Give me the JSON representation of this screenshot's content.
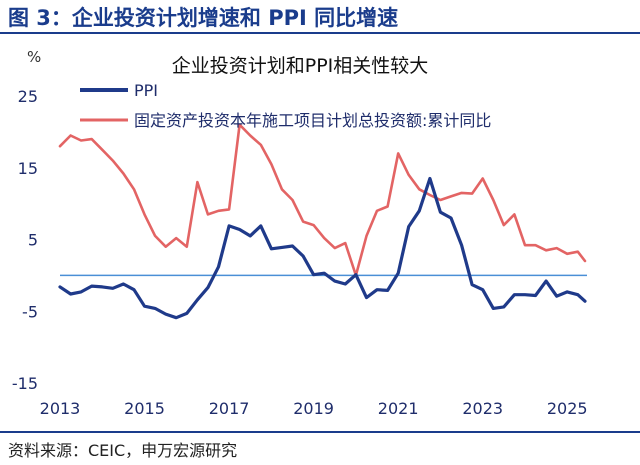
{
  "figure": {
    "label": "图 3：企业投资计划增速和 PPI 同比增速",
    "source": "资料来源：CEIC，申万宏源研究"
  },
  "colors": {
    "accent": "#1a3c8c",
    "ppi": "#1f3a8a",
    "investment": "#e36464",
    "zero_line": "#4a8fd6"
  },
  "chart_data": {
    "type": "line",
    "title": "企业投资计划和PPI相关性较大",
    "ylabel": "%",
    "xlabel": "",
    "ylim": [
      -15,
      25
    ],
    "y_ticks": [
      "25",
      "15",
      "5",
      "-5",
      "-15"
    ],
    "x_ticks": [
      "2013",
      "2015",
      "2017",
      "2019",
      "2021",
      "2023",
      "2025"
    ],
    "xlim": [
      2013.0,
      2025.42
    ],
    "grid": false,
    "legend_position": "top",
    "series": [
      {
        "name": "PPI",
        "points": [
          [
            2013.0,
            -1.6
          ],
          [
            2013.25,
            -2.6
          ],
          [
            2013.5,
            -2.3
          ],
          [
            2013.75,
            -1.5
          ],
          [
            2014.0,
            -1.6
          ],
          [
            2014.25,
            -1.8
          ],
          [
            2014.5,
            -1.2
          ],
          [
            2014.75,
            -2.0
          ],
          [
            2015.0,
            -4.3
          ],
          [
            2015.25,
            -4.6
          ],
          [
            2015.5,
            -5.4
          ],
          [
            2015.75,
            -5.9
          ],
          [
            2016.0,
            -5.3
          ],
          [
            2016.25,
            -3.4
          ],
          [
            2016.5,
            -1.7
          ],
          [
            2016.75,
            1.2
          ],
          [
            2017.0,
            6.9
          ],
          [
            2017.25,
            6.4
          ],
          [
            2017.5,
            5.5
          ],
          [
            2017.75,
            6.9
          ],
          [
            2018.0,
            3.7
          ],
          [
            2018.25,
            3.9
          ],
          [
            2018.5,
            4.1
          ],
          [
            2018.75,
            2.7
          ],
          [
            2019.0,
            0.1
          ],
          [
            2019.25,
            0.3
          ],
          [
            2019.5,
            -0.8
          ],
          [
            2019.75,
            -1.2
          ],
          [
            2020.0,
            0.1
          ],
          [
            2020.25,
            -3.1
          ],
          [
            2020.5,
            -2.0
          ],
          [
            2020.75,
            -2.1
          ],
          [
            2021.0,
            0.3
          ],
          [
            2021.25,
            6.8
          ],
          [
            2021.5,
            9.0
          ],
          [
            2021.75,
            13.5
          ],
          [
            2022.0,
            8.8
          ],
          [
            2022.25,
            8.0
          ],
          [
            2022.5,
            4.2
          ],
          [
            2022.75,
            -1.3
          ],
          [
            2023.0,
            -2.0
          ],
          [
            2023.25,
            -4.6
          ],
          [
            2023.5,
            -4.4
          ],
          [
            2023.75,
            -2.7
          ],
          [
            2024.0,
            -2.7
          ],
          [
            2024.25,
            -2.8
          ],
          [
            2024.5,
            -0.8
          ],
          [
            2024.75,
            -2.9
          ],
          [
            2025.0,
            -2.3
          ],
          [
            2025.25,
            -2.7
          ],
          [
            2025.42,
            -3.6
          ]
        ]
      },
      {
        "name": "固定资产投资本年施工项目计划总投资额:累计同比",
        "points": [
          [
            2013.0,
            18.0
          ],
          [
            2013.25,
            19.5
          ],
          [
            2013.5,
            18.8
          ],
          [
            2013.75,
            19.0
          ],
          [
            2014.0,
            17.5
          ],
          [
            2014.25,
            16.0
          ],
          [
            2014.5,
            14.2
          ],
          [
            2014.75,
            12.0
          ],
          [
            2015.0,
            8.5
          ],
          [
            2015.25,
            5.5
          ],
          [
            2015.5,
            4.0
          ],
          [
            2015.75,
            5.2
          ],
          [
            2016.0,
            4.0
          ],
          [
            2016.25,
            13.0
          ],
          [
            2016.5,
            8.5
          ],
          [
            2016.75,
            9.0
          ],
          [
            2017.0,
            9.2
          ],
          [
            2017.25,
            21.0
          ],
          [
            2017.5,
            19.5
          ],
          [
            2017.75,
            18.2
          ],
          [
            2018.0,
            15.5
          ],
          [
            2018.25,
            12.0
          ],
          [
            2018.5,
            10.5
          ],
          [
            2018.75,
            7.5
          ],
          [
            2019.0,
            7.0
          ],
          [
            2019.25,
            5.2
          ],
          [
            2019.5,
            3.8
          ],
          [
            2019.75,
            4.5
          ],
          [
            2020.0,
            0.0
          ],
          [
            2020.25,
            5.5
          ],
          [
            2020.5,
            9.0
          ],
          [
            2020.75,
            9.6
          ],
          [
            2021.0,
            17.0
          ],
          [
            2021.25,
            14.0
          ],
          [
            2021.5,
            12.0
          ],
          [
            2021.75,
            11.2
          ],
          [
            2022.0,
            10.5
          ],
          [
            2022.25,
            11.0
          ],
          [
            2022.5,
            11.5
          ],
          [
            2022.75,
            11.4
          ],
          [
            2023.0,
            13.5
          ],
          [
            2023.25,
            10.5
          ],
          [
            2023.5,
            7.0
          ],
          [
            2023.75,
            8.5
          ],
          [
            2024.0,
            4.2
          ],
          [
            2024.25,
            4.2
          ],
          [
            2024.5,
            3.5
          ],
          [
            2024.75,
            3.8
          ],
          [
            2025.0,
            3.0
          ],
          [
            2025.25,
            3.3
          ],
          [
            2025.42,
            2.0
          ]
        ]
      }
    ]
  }
}
